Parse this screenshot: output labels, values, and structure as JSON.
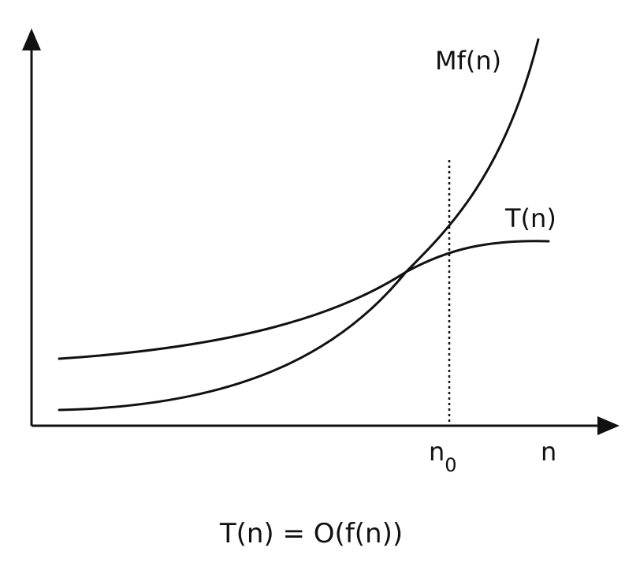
{
  "diagram": {
    "curves": [
      {
        "label": "Mf(n)"
      },
      {
        "label": "T(n)"
      }
    ],
    "threshold": {
      "base": "n",
      "subscript": "0"
    },
    "x_axis_label": "n",
    "caption": "T(n) = O(f(n))"
  }
}
